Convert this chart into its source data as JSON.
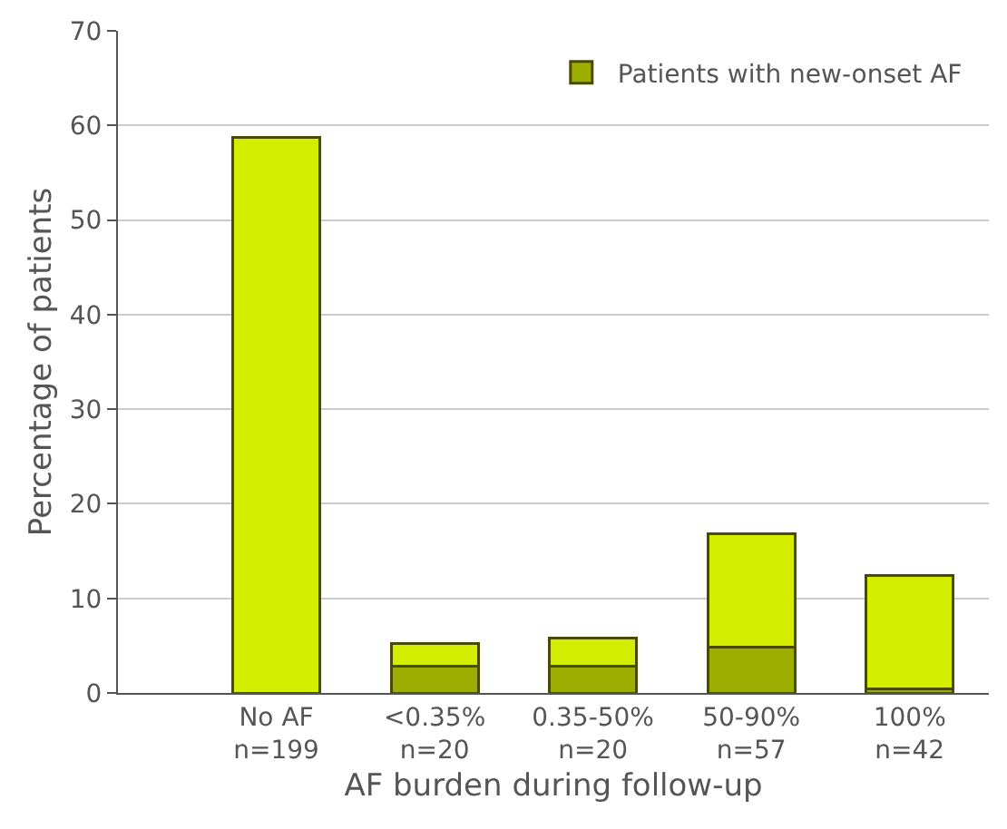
{
  "chart_data": {
    "type": "bar",
    "stacked": true,
    "xlabel": "AF burden during follow-up",
    "ylabel": "Percentage of patients",
    "categories": [
      "No AF\nn=199",
      "<0.35%\nn=20",
      "0.35-50%\nn=20",
      "50-90%\nn=57",
      "100%\nn=42"
    ],
    "series": [
      {
        "name": "Patients with new-onset AF",
        "color": "#9cae00",
        "values": [
          0,
          2.8,
          2.8,
          4.8,
          0.4
        ]
      },
      {
        "color": "#d4ee00",
        "values": [
          58.7,
          2.4,
          3.0,
          12.0,
          12.0
        ]
      }
    ],
    "ylim": [
      0,
      70
    ],
    "yticks": [
      0,
      10,
      20,
      30,
      40,
      50,
      60,
      70
    ],
    "grid": "y",
    "legend": "top right"
  }
}
